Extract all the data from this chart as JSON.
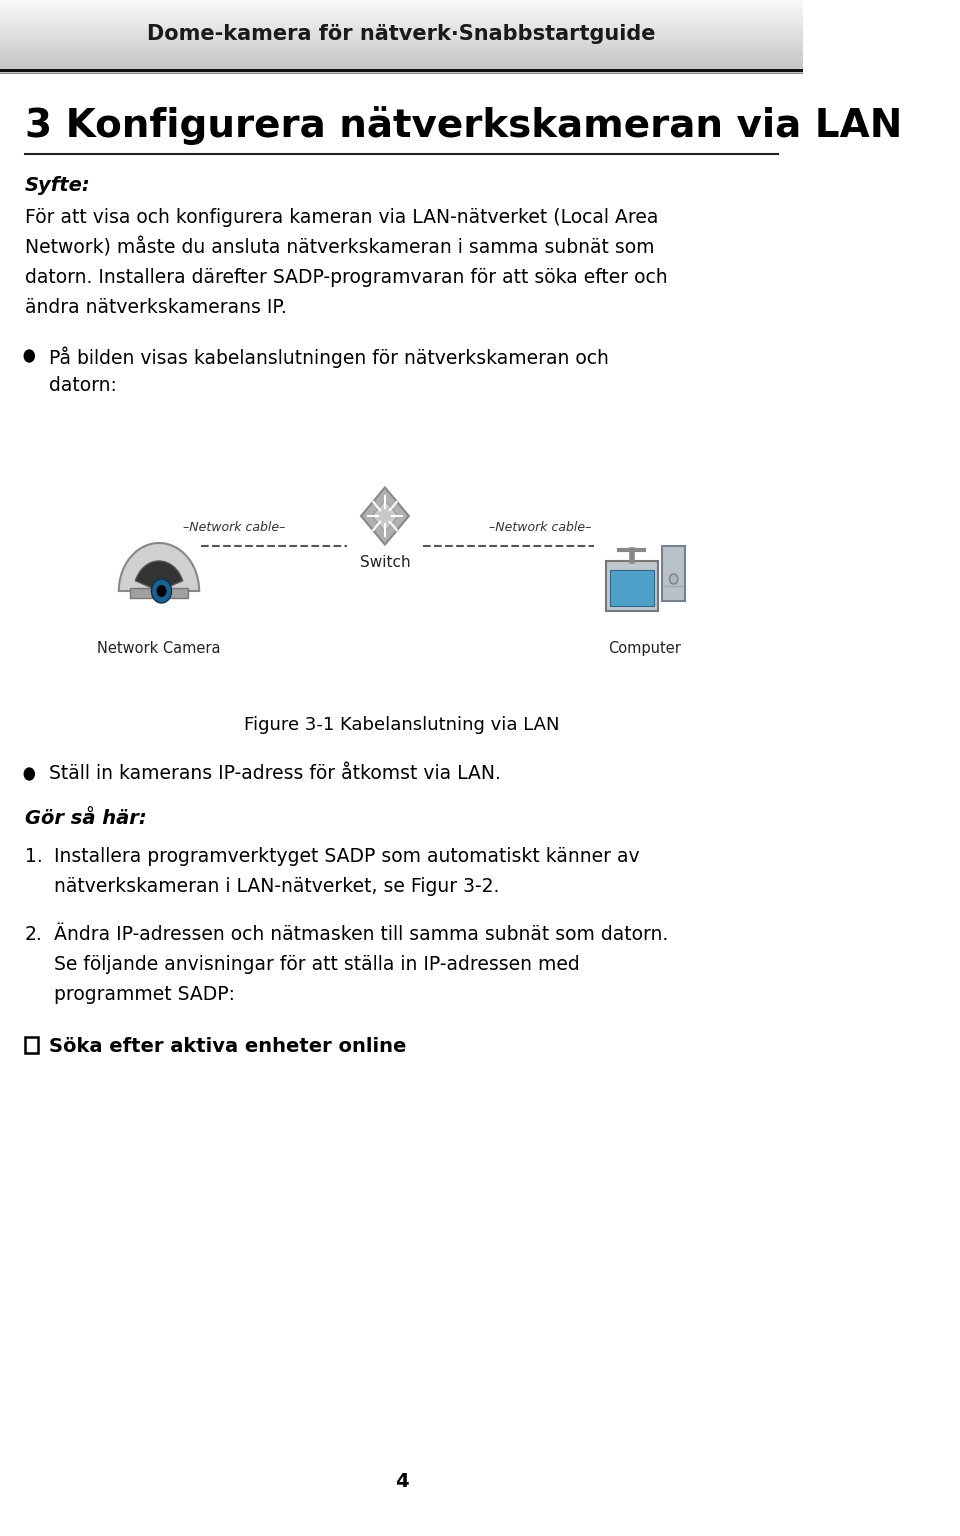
{
  "header_text": "Dome-kamera för nätverk·Snabbstartguide",
  "header_bg_start": "#d0d0d0",
  "header_bg_end": "#ffffff",
  "header_border_color": "#222222",
  "section_title": "3 Konfigurera nätverkskameran via LAN",
  "section_underline_color": "#222222",
  "purpose_label": "Syfte:",
  "purpose_text": "För att visa och konfigurera kameran via LAN-nätverket (Local Area\nNetwork) måste du ansluta nätverkskameran i samma subnät som\ndatorn. Installera därefter SADP-programvaran för att söka efter och\nändra nätverkskamerans IP.",
  "bullet1": "På bilden visas kabelanslutningen för nätverkskameran och\ndatorn:",
  "figure_caption": "Figure 3-1 Kabelanslutning via LAN",
  "bullet2": "Ställ in kamerans IP-adress för åtkomst via LAN.",
  "gor_sa_har": "Gör så här:",
  "step1_label": "1.",
  "step1_text": "Installera programverktyget SADP som automatiskt känner av\nnätverkskameran i LAN-nätverket, se Figur 3-2.",
  "step2_label": "2.",
  "step2_text": "Ändra IP-adressen och nätmasken till samma subnät som datorn.\nSe följande anvisningar för att ställa in IP-adressen med\nprogrammet SADP:",
  "checkbox_text": "Söka efter aktiva enheter online",
  "page_number": "4",
  "bg_color": "#ffffff",
  "text_color": "#000000",
  "header_text_color": "#1a1a1a"
}
